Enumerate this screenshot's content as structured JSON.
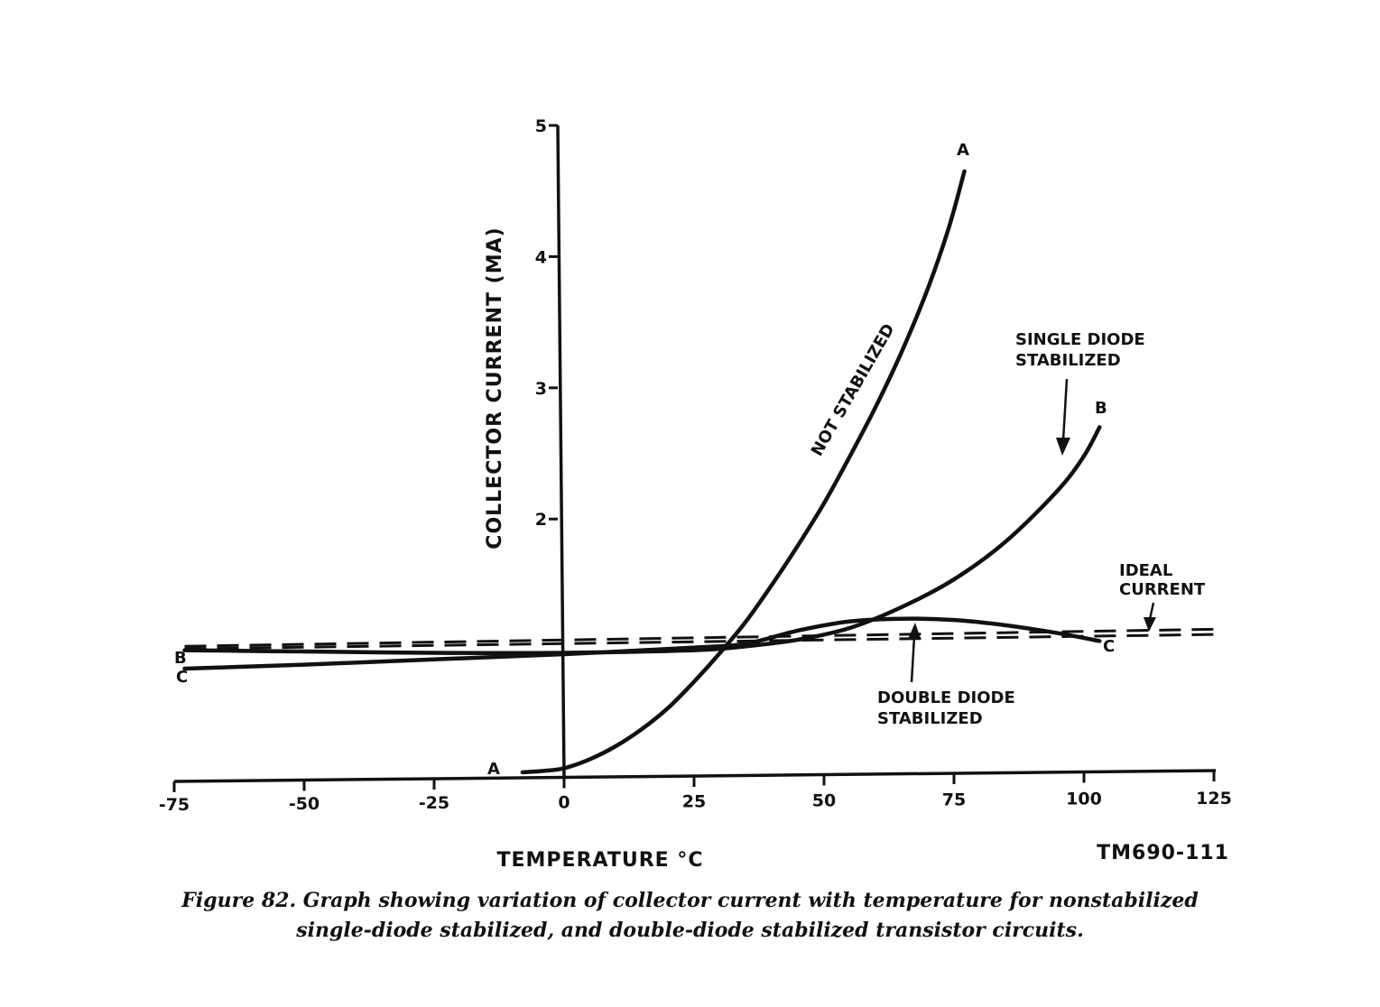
{
  "chart_data": {
    "type": "line",
    "xlabel": "TEMPERATURE °C",
    "ylabel": "COLLECTOR CURRENT (MA)",
    "xlim": [
      -75,
      125
    ],
    "ylim": [
      0,
      5
    ],
    "x_ticks": [
      -75,
      -50,
      -25,
      0,
      25,
      50,
      75,
      100,
      125
    ],
    "x_tick_labels": [
      "-75",
      "-50",
      "-25",
      "0",
      "25",
      "50",
      "75",
      "100",
      "125"
    ],
    "y_ticks": [
      2,
      3,
      4,
      5
    ],
    "y_tick_labels": [
      "2",
      "3",
      "4",
      "5"
    ],
    "grid": false,
    "series": [
      {
        "name": "NOT STABILIZED",
        "end_label": "A",
        "style": "solid",
        "x": [
          -8,
          -4,
          0,
          5,
          10,
          15,
          20,
          25,
          30,
          35,
          40,
          45,
          50,
          55,
          60,
          65,
          70,
          74,
          77
        ],
        "y": [
          0.07,
          0.08,
          0.1,
          0.17,
          0.27,
          0.4,
          0.56,
          0.76,
          0.98,
          1.22,
          1.5,
          1.8,
          2.12,
          2.48,
          2.86,
          3.28,
          3.76,
          4.22,
          4.65
        ]
      },
      {
        "name": "SINGLE DIODE STABILIZED",
        "end_label": "B",
        "style": "solid",
        "x": [
          -73,
          -50,
          -25,
          0,
          25,
          35,
          45,
          55,
          65,
          75,
          85,
          95,
          100,
          103
        ],
        "y": [
          1.0,
          0.99,
          0.98,
          0.98,
          1.0,
          1.03,
          1.08,
          1.17,
          1.33,
          1.54,
          1.83,
          2.22,
          2.48,
          2.7
        ]
      },
      {
        "name": "DOUBLE DIODE STABILIZED",
        "end_label": "C",
        "style": "solid",
        "x": [
          -73,
          -50,
          -25,
          0,
          25,
          35,
          45,
          55,
          65,
          75,
          85,
          95,
          103
        ],
        "y": [
          0.86,
          0.89,
          0.93,
          0.97,
          1.02,
          1.05,
          1.15,
          1.22,
          1.24,
          1.23,
          1.19,
          1.13,
          1.07
        ]
      },
      {
        "name": "IDEAL CURRENT",
        "style": "dashed",
        "x": [
          -73,
          125
        ],
        "y": [
          1.03,
          1.16
        ]
      },
      {
        "name": "IDEAL CURRENT",
        "style": "dashed",
        "x": [
          -73,
          125
        ],
        "y": [
          1.01,
          1.12
        ]
      }
    ],
    "annotations": {
      "not_stabilized": "NOT STABILIZED",
      "single_diode_1": "SINGLE DIODE",
      "single_diode_2": "STABILIZED",
      "ideal_1": "IDEAL",
      "ideal_2": "CURRENT",
      "double_diode_1": "DOUBLE DIODE",
      "double_diode_2": "STABILIZED",
      "label_a_start": "A",
      "label_a_end": "A",
      "label_b_start": "B",
      "label_b_end": "B",
      "label_c_start": "C",
      "label_c_end": "C"
    },
    "figure_id": "TM690-111"
  },
  "caption": {
    "line1": "Figure 82.   Graph showing variation of collector current with temperature for nonstabilized",
    "line2": "single-diode stabilized, and double-diode stabilized transistor circuits."
  }
}
